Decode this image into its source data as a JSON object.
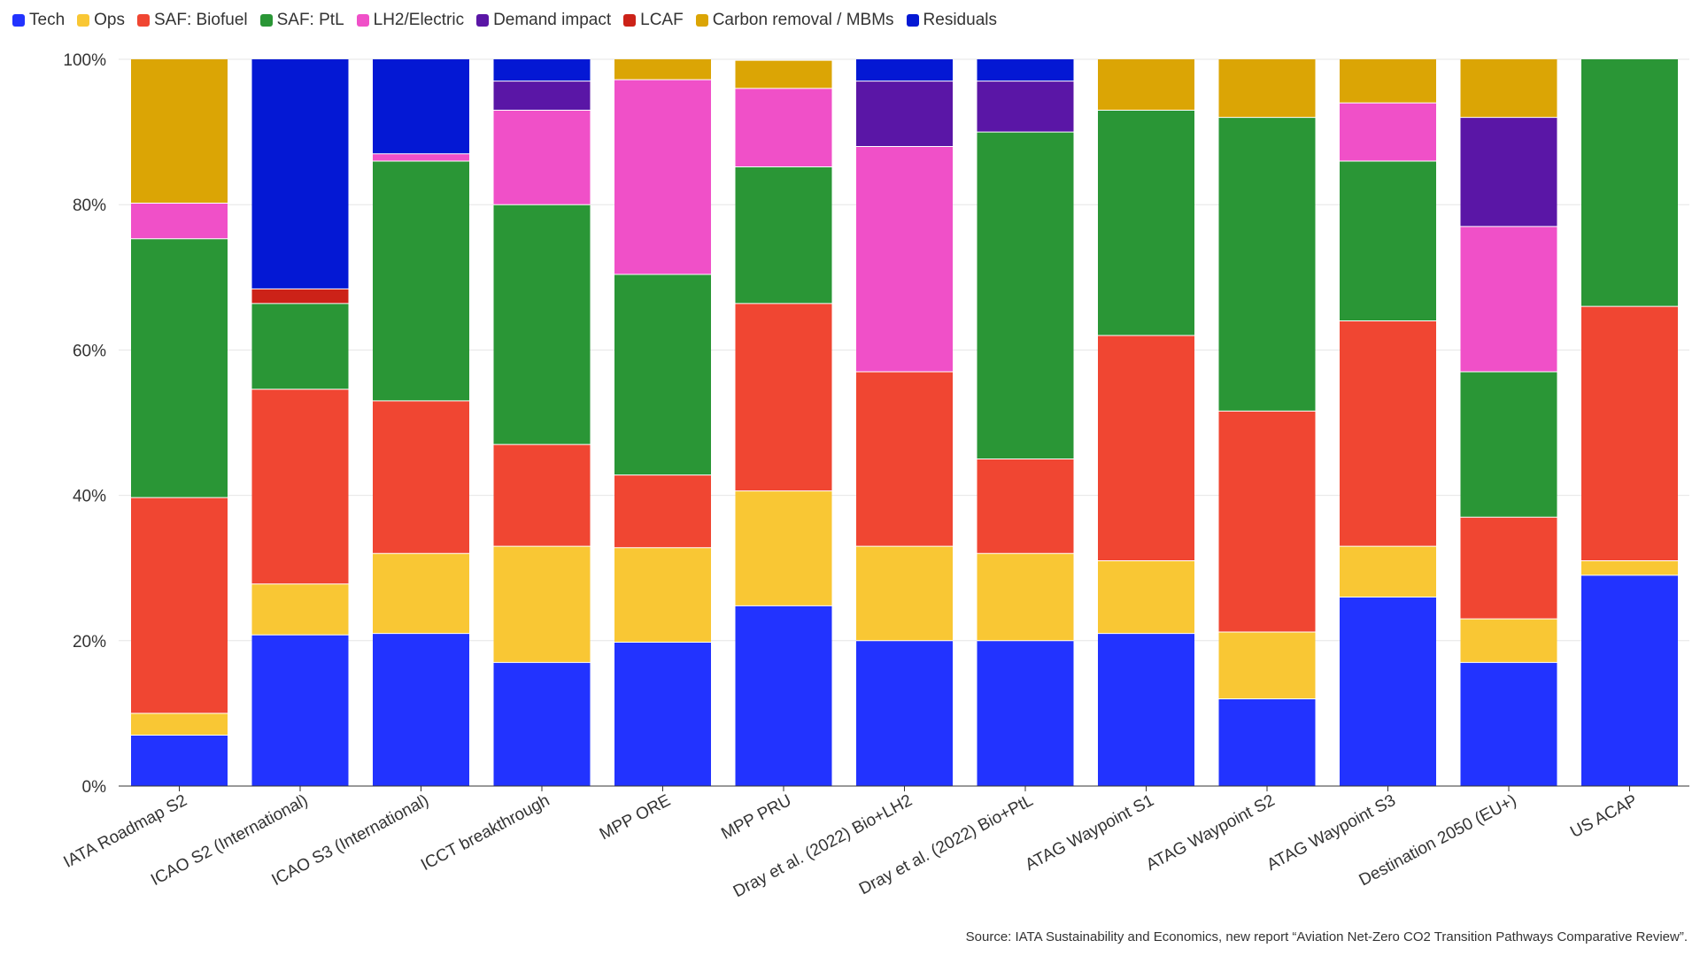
{
  "chart_data": {
    "type": "bar",
    "stacked": true,
    "title": "",
    "xlabel": "",
    "ylabel": "",
    "ylim": [
      0,
      100
    ],
    "y_ticks": [
      "0%",
      "20%",
      "40%",
      "60%",
      "80%",
      "100%"
    ],
    "y_tick_values": [
      0,
      20,
      40,
      60,
      80,
      100
    ],
    "grid": true,
    "legend_position": "top-left",
    "categories": [
      "IATA Roadmap S2",
      "ICAO S2 (International)",
      "ICAO S3 (International)",
      "ICCT breakthrough",
      "MPP ORE",
      "MPP PRU",
      "Dray et al. (2022) Bio+LH2",
      "Dray et al. (2022) Bio+PtL",
      "ATAG Waypoint S1",
      "ATAG Waypoint S2",
      "ATAG Waypoint S3",
      "Destination 2050 (EU+)",
      "US ACAP"
    ],
    "series": [
      {
        "name": "Tech",
        "color": "#2233ff",
        "values": [
          7,
          20.8,
          21,
          17,
          19.8,
          24.8,
          20,
          20,
          21,
          12,
          26,
          17,
          29
        ]
      },
      {
        "name": "Ops",
        "color": "#f9c734",
        "values": [
          3,
          7,
          11,
          16,
          13,
          15.8,
          13,
          12,
          10,
          9.2,
          7,
          6,
          2
        ]
      },
      {
        "name": "SAF: Biofuel",
        "color": "#f04632",
        "values": [
          29.7,
          26.8,
          21,
          14,
          10,
          25.8,
          24,
          13,
          31,
          30.4,
          31,
          14,
          35
        ]
      },
      {
        "name": "SAF: PtL",
        "color": "#2a9636",
        "values": [
          35.6,
          11.8,
          33,
          33,
          27.6,
          18.8,
          0,
          45,
          31,
          40.4,
          22,
          20,
          34
        ]
      },
      {
        "name": "LH2/Electric",
        "color": "#f050c8",
        "values": [
          4.9,
          0,
          1,
          13,
          26.8,
          10.8,
          31,
          0,
          0,
          0,
          8,
          20,
          0
        ]
      },
      {
        "name": "Demand impact",
        "color": "#5a16a6",
        "values": [
          0,
          0,
          0,
          4,
          0,
          0,
          9,
          7,
          0,
          0,
          0,
          15,
          0
        ]
      },
      {
        "name": "LCAF",
        "color": "#cc2218",
        "values": [
          0,
          2,
          0,
          0,
          0,
          0,
          0,
          0,
          0,
          0,
          0,
          0,
          0
        ]
      },
      {
        "name": "Carbon removal / MBMs",
        "color": "#dba505",
        "values": [
          19.8,
          0,
          0,
          0,
          2.8,
          3.8,
          0,
          0,
          7,
          8,
          6,
          8,
          0
        ]
      },
      {
        "name": "Residuals",
        "color": "#0418d4",
        "values": [
          0,
          31.6,
          13,
          3,
          0,
          0,
          3,
          3,
          0,
          0,
          0,
          0,
          0
        ]
      }
    ]
  },
  "source": "Source: IATA Sustainability and Economics, new report “Aviation Net-Zero CO2 Transition Pathways Comparative Review”."
}
